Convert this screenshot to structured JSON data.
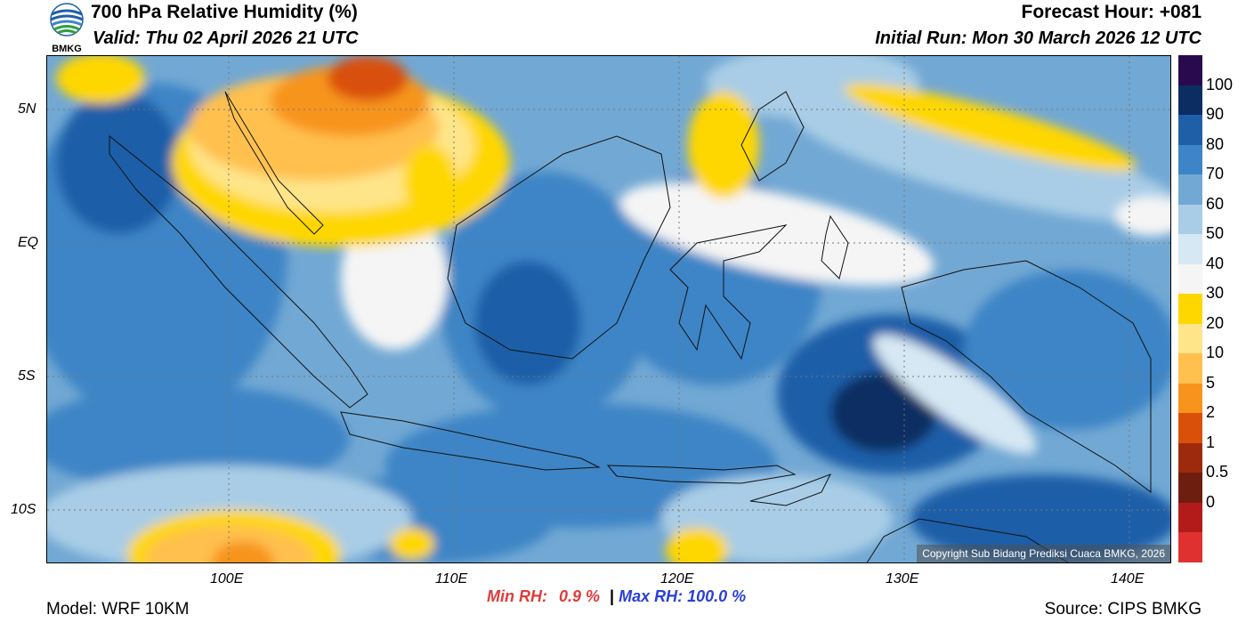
{
  "header": {
    "title": "700 hPa Relative Humidity (%)",
    "valid": "Valid: Thu 02 April 2026 21 UTC",
    "forecast_hour": "Forecast Hour: +081",
    "initial_run": "Initial Run: Mon 30 March 2026 12 UTC",
    "logo_text": "BMKG"
  },
  "map": {
    "lat_labels": [
      "5N",
      "EQ",
      "5S",
      "10S"
    ],
    "lon_labels": [
      "100E",
      "110E",
      "120E",
      "130E",
      "140E"
    ],
    "copyright": "Copyright Sub Bidang Prediksi Cuaca BMKG, 2026"
  },
  "colorbar": {
    "labels": [
      "100",
      "90",
      "80",
      "70",
      "60",
      "50",
      "40",
      "30",
      "20",
      "10",
      "5",
      "2",
      "1",
      "0.5",
      "0"
    ],
    "colors": [
      "#2a0a4e",
      "#0b2d62",
      "#1f5fa8",
      "#3d85c6",
      "#72a8d4",
      "#a9cde6",
      "#d6e8f3",
      "#f5f5f5",
      "#ffd700",
      "#ffe58a",
      "#ffc04d",
      "#f7941d",
      "#d9500b",
      "#9e2a0d",
      "#6e1e0e",
      "#b31b1b",
      "#e03131"
    ]
  },
  "stats": {
    "min_label": "Min RH:",
    "min_value": "0.9 %",
    "separator": "|",
    "max_label": "Max RH:",
    "max_value": "100.0 %"
  },
  "footer": {
    "model": "Model: WRF 10KM",
    "source": "Source: CIPS BMKG"
  }
}
